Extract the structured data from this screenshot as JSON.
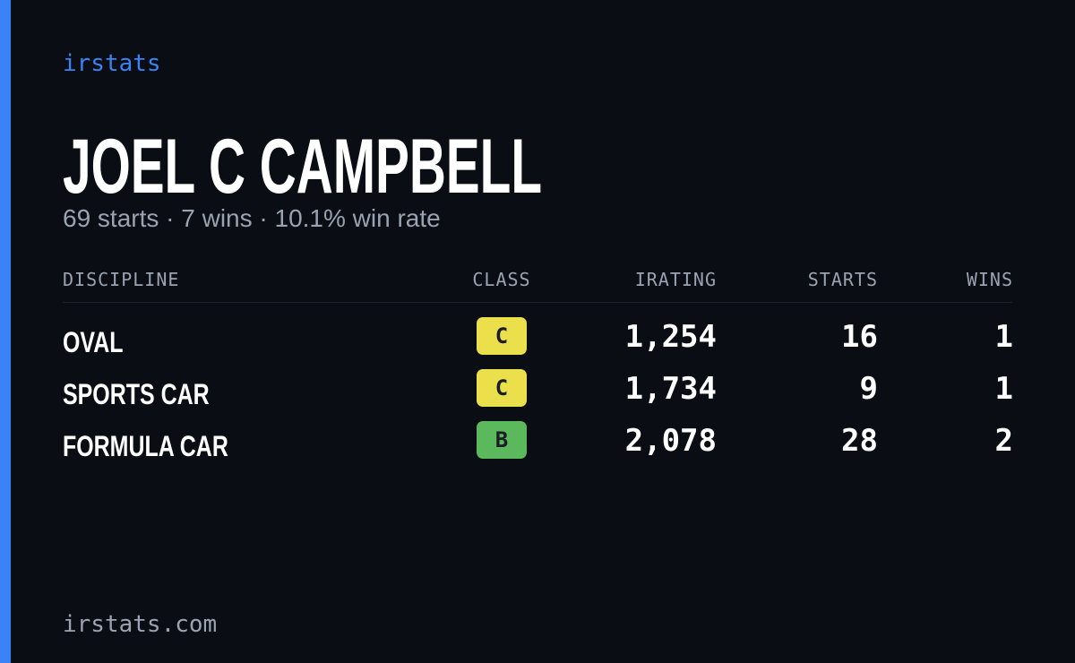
{
  "brand": "irstats",
  "name": "JOEL C CAMPBELL",
  "summary": "69 starts · 7 wins · 10.1% win rate",
  "table": {
    "headers": [
      "DISCIPLINE",
      "CLASS",
      "IRATING",
      "STARTS",
      "WINS"
    ],
    "rows": [
      {
        "discipline": "OVAL",
        "class": "C",
        "class_color": "#ebe04b",
        "irating": "1,254",
        "starts": "16",
        "wins": "1"
      },
      {
        "discipline": "SPORTS CAR",
        "class": "C",
        "class_color": "#ebe04b",
        "irating": "1,734",
        "starts": "9",
        "wins": "1"
      },
      {
        "discipline": "FORMULA CAR",
        "class": "B",
        "class_color": "#5cb85c",
        "irating": "2,078",
        "starts": "28",
        "wins": "2"
      }
    ]
  },
  "footer": "irstats.com"
}
